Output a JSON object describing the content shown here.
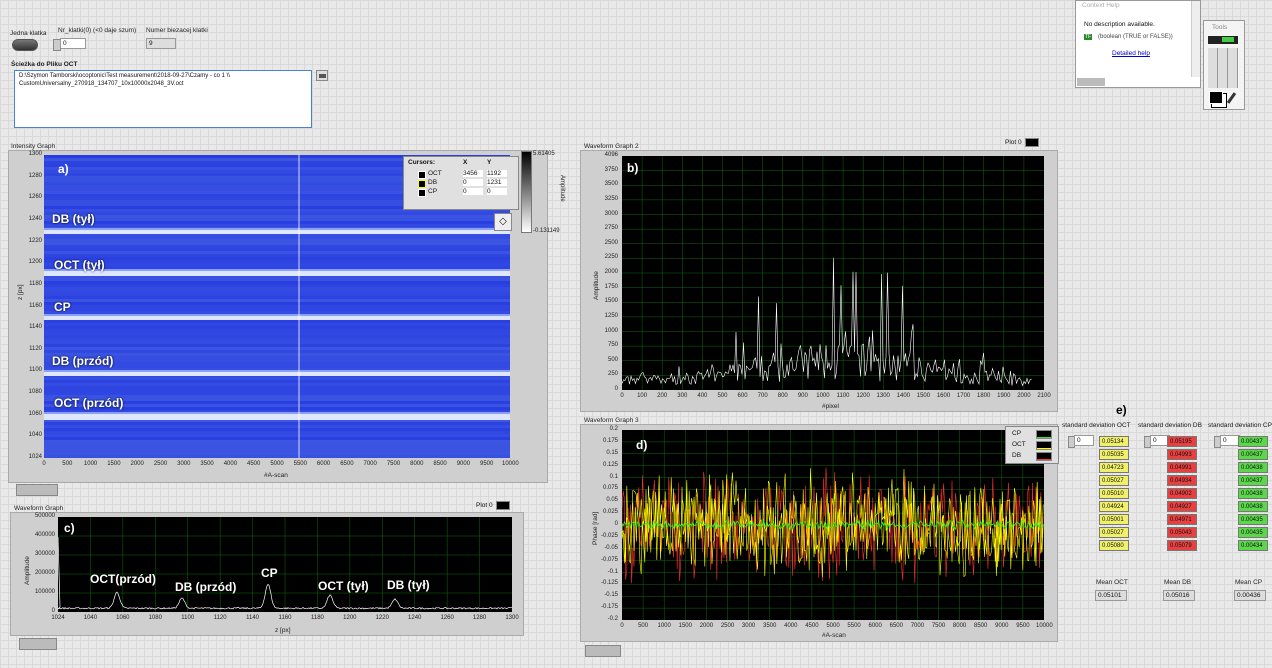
{
  "top": {
    "toggle_label": "Jedna klatka",
    "frame_label": "Nr_klatki(0) (<0 daje szum)",
    "frame_value": "0",
    "current_label": "Numer biezacej klatki",
    "current_value": "9"
  },
  "path": {
    "label": "Ścieżka do Pliku OCT",
    "line1": "D:\\Szymon Tamborski\\ocoptonic\\Test measurement\\2018-09-27\\Czamy - co 1 \\\\",
    "line2": "CustomUniversalny_270918_134707_10x10000x2048_3V.oct"
  },
  "help": {
    "title": "Context Help",
    "line1": "No description available.",
    "line2": "(boolean (TRUE or FALSE))",
    "tag": "TF",
    "link": "Detailed help"
  },
  "tools": {
    "title": "Tools"
  },
  "intensity": {
    "title": "Intensity Graph",
    "ylabel": "z [px]",
    "xlabel": "#A-scan",
    "yticks": [
      "1300",
      "1280",
      "1260",
      "1240",
      "1220",
      "1200",
      "1180",
      "1160",
      "1140",
      "1120",
      "1100",
      "1080",
      "1060",
      "1040",
      "1024"
    ],
    "xticks": [
      "0",
      "500",
      "1000",
      "1500",
      "2000",
      "2500",
      "3000",
      "3500",
      "4000",
      "4500",
      "5000",
      "5500",
      "6000",
      "6500",
      "7000",
      "7500",
      "8000",
      "8500",
      "9000",
      "9500",
      "10000"
    ],
    "scale_max": "5.61405",
    "scale_min": "-0.131149",
    "scale_label": "Amplitude",
    "letter": "a)",
    "labels": [
      "DB  (tył)",
      "OCT  (tył)",
      "CP",
      "DB (przód)",
      "OCT (przód)"
    ],
    "cursors": {
      "header": [
        "Cursors:",
        "X",
        "Y"
      ],
      "rows": [
        {
          "name": "OCT",
          "x": "3456",
          "y": "1192",
          "color": "#ffffff"
        },
        {
          "name": "DB",
          "x": "0",
          "y": "1231",
          "color": "#ffff00"
        },
        {
          "name": "CP",
          "x": "0",
          "y": "0",
          "color": "#ffffff"
        }
      ]
    }
  },
  "wg2": {
    "title": "Waveform Graph 2",
    "plot": "Plot 0",
    "ylabel": "Amplitude",
    "xlabel": "#pixel",
    "letter": "b)",
    "yticks": [
      "4096",
      "3750",
      "3500",
      "3250",
      "3000",
      "2750",
      "2500",
      "2250",
      "2000",
      "1750",
      "1500",
      "1250",
      "1000",
      "750",
      "500",
      "250",
      "0"
    ],
    "xticks": [
      "0",
      "100",
      "200",
      "300",
      "400",
      "500",
      "600",
      "700",
      "800",
      "900",
      "1000",
      "1100",
      "1200",
      "1300",
      "1400",
      "1500",
      "1600",
      "1700",
      "1800",
      "1900",
      "2000",
      "2100"
    ]
  },
  "wg1": {
    "title": "Waveform Graph",
    "plot": "Plot 0",
    "ylabel": "Amplitude",
    "xlabel": "z [px]",
    "letter": "c)",
    "yticks": [
      "500000",
      "400000",
      "300000",
      "200000",
      "100000",
      "0"
    ],
    "xticks": [
      "1024",
      "1040",
      "1060",
      "1080",
      "1100",
      "1120",
      "1140",
      "1160",
      "1180",
      "1200",
      "1220",
      "1240",
      "1260",
      "1280",
      "1300"
    ],
    "peaks": [
      "OCT(przód)",
      "DB (przód)",
      "CP",
      "OCT (tył)",
      "DB (tył)"
    ]
  },
  "wg3": {
    "title": "Waveform Graph 3",
    "ylabel": "Phase [rad]",
    "xlabel": "#A-scan",
    "letter": "d)",
    "yticks": [
      "0.2",
      "0.175",
      "0.15",
      "0.125",
      "0.1",
      "0.075",
      "0.05",
      "0.025",
      "0",
      "-0.025",
      "-0.05",
      "-0.075",
      "-0.1",
      "-0.125",
      "-0.15",
      "-0.175",
      "-0.2"
    ],
    "xticks": [
      "0",
      "500",
      "1000",
      "1500",
      "2000",
      "2500",
      "3000",
      "3500",
      "4000",
      "4500",
      "5000",
      "5500",
      "6000",
      "6500",
      "7000",
      "7500",
      "8000",
      "8500",
      "9000",
      "9500",
      "10000"
    ],
    "legend": [
      {
        "name": "CP",
        "color": "#33ee33"
      },
      {
        "name": "OCT",
        "color": "#ffff00"
      },
      {
        "name": "DB",
        "color": "#ff3030"
      }
    ]
  },
  "stats": {
    "letter": "e)",
    "oct": {
      "label": "standard deviation OCT",
      "index": "0",
      "values": [
        "0.05134",
        "0.05035",
        "0.04723",
        "0.05027",
        "0.05010",
        "0.04924",
        "0.05001",
        "0.05027",
        "0.05080"
      ],
      "mean_label": "Mean OCT",
      "mean": "0.05101",
      "color": "#f0f06a"
    },
    "db": {
      "label": "standard deviation DB",
      "index": "0",
      "values": [
        "0.05195",
        "0.04993",
        "0.04991",
        "0.04934",
        "0.04902",
        "0.04927",
        "0.04971",
        "0.05043",
        "0.05079"
      ],
      "mean_label": "Mean DB",
      "mean": "0.05016",
      "color": "#e84040"
    },
    "cp": {
      "label": "standard deviation CP",
      "index": "0",
      "values": [
        "0.00437",
        "0.00437",
        "0.00438",
        "0.00437",
        "0.00438",
        "0.00438",
        "0.00435",
        "0.00435",
        "0.00434"
      ],
      "mean_label": "Mean CP",
      "mean": "0.00436",
      "color": "#5ad84a"
    }
  }
}
